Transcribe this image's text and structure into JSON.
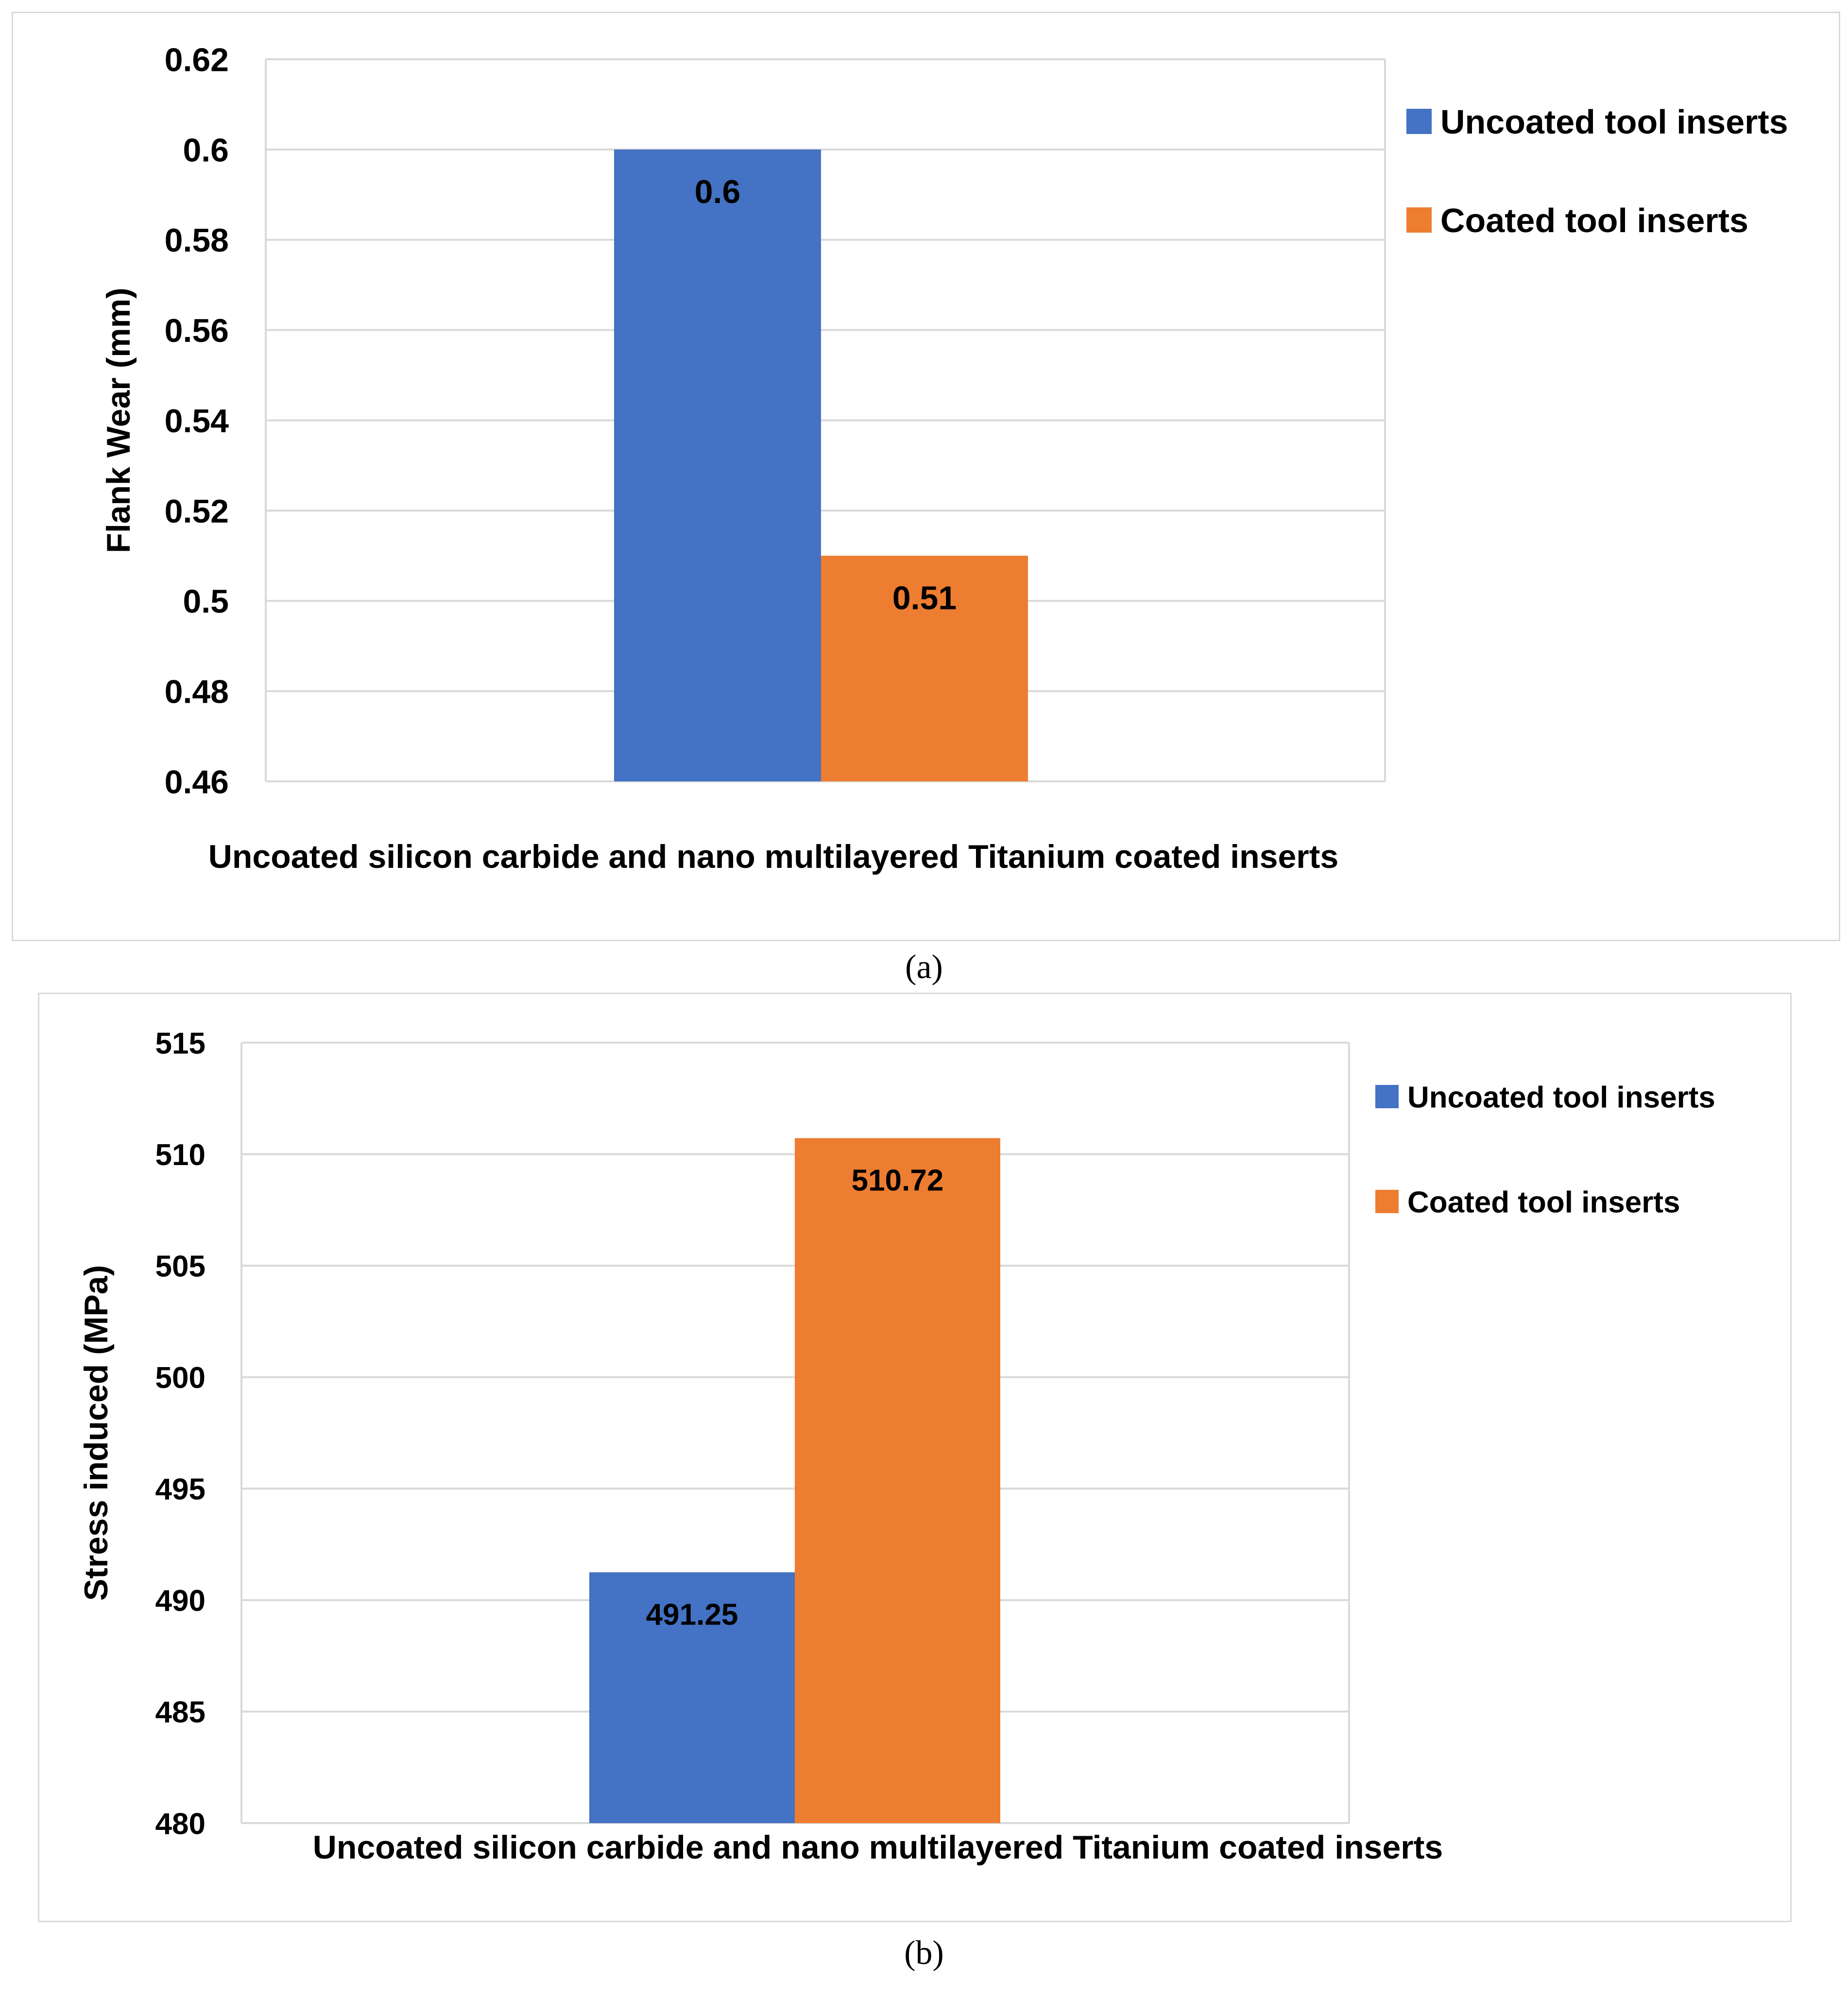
{
  "chart_data": [
    {
      "type": "bar",
      "categories": [
        "Uncoated silicon carbide and nano multilayered Titanium coated inserts"
      ],
      "series": [
        {
          "name": "Uncoated tool inserts",
          "values": [
            0.6
          ],
          "color": "#4472C4",
          "data_label": "0.6"
        },
        {
          "name": "Coated tool inserts",
          "values": [
            0.51
          ],
          "color": "#ED7D31",
          "data_label": "0.51"
        }
      ],
      "xlabel": "Uncoated silicon carbide and nano multilayered Titanium coated inserts",
      "ylabel": "Flank Wear (mm)",
      "ylim": [
        0.46,
        0.62
      ],
      "yticks": [
        0.46,
        0.48,
        0.5,
        0.52,
        0.54,
        0.56,
        0.58,
        0.6,
        0.62
      ],
      "ytick_labels": [
        "0.46",
        "0.48",
        "0.5",
        "0.52",
        "0.54",
        "0.56",
        "0.58",
        "0.6",
        "0.62"
      ],
      "grid": true,
      "legend": "right",
      "panel_label": "(a)"
    },
    {
      "type": "bar",
      "categories": [
        "Uncoated silicon carbide and nano multilayered Titanium coated inserts"
      ],
      "series": [
        {
          "name": "Uncoated tool inserts",
          "values": [
            491.25
          ],
          "color": "#4472C4",
          "data_label": "491.25"
        },
        {
          "name": "Coated tool inserts",
          "values": [
            510.72
          ],
          "color": "#ED7D31",
          "data_label": "510.72"
        }
      ],
      "xlabel": "Uncoated silicon carbide and nano multilayered Titanium coated inserts",
      "ylabel": "Stress induced (MPa)",
      "ylim": [
        480,
        515
      ],
      "yticks": [
        480,
        485,
        490,
        495,
        500,
        505,
        510,
        515
      ],
      "ytick_labels": [
        "480",
        "485",
        "490",
        "495",
        "500",
        "505",
        "510",
        "515"
      ],
      "grid": true,
      "legend": "right",
      "panel_label": "(b)"
    }
  ]
}
